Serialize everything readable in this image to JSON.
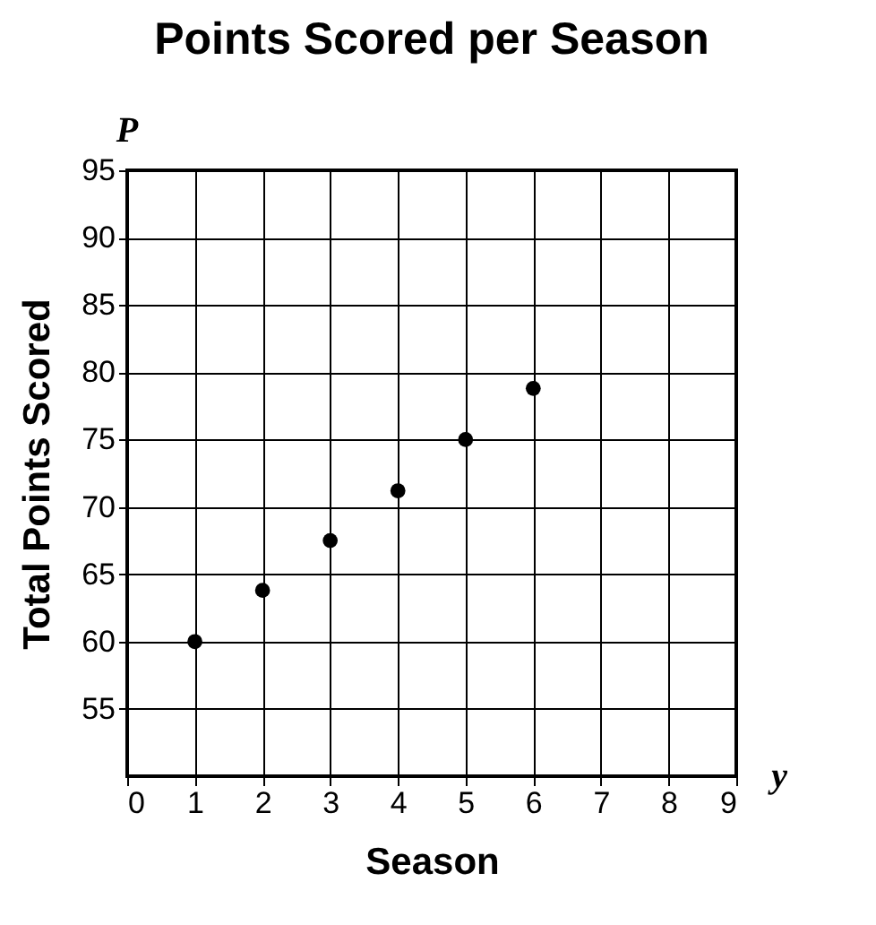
{
  "chart_data": {
    "type": "scatter",
    "title": "Points Scored per Season",
    "xlabel": "Season",
    "ylabel": "Total Points Scored",
    "x": [
      1,
      2,
      3,
      4,
      5,
      6
    ],
    "series": [
      {
        "color": "#000000",
        "values": [
          60,
          63.8,
          67.5,
          71.2,
          75,
          78.8
        ]
      }
    ],
    "xlim": [
      0,
      9
    ],
    "xticks": [
      0,
      1,
      2,
      3,
      4,
      5,
      6,
      7,
      8,
      9
    ],
    "ylim": [
      50,
      95
    ],
    "yticks": [
      55,
      60,
      65,
      70,
      75,
      80,
      85,
      90,
      95
    ],
    "grid": true,
    "marker": "circle",
    "annotations": [
      "P",
      "y"
    ]
  }
}
